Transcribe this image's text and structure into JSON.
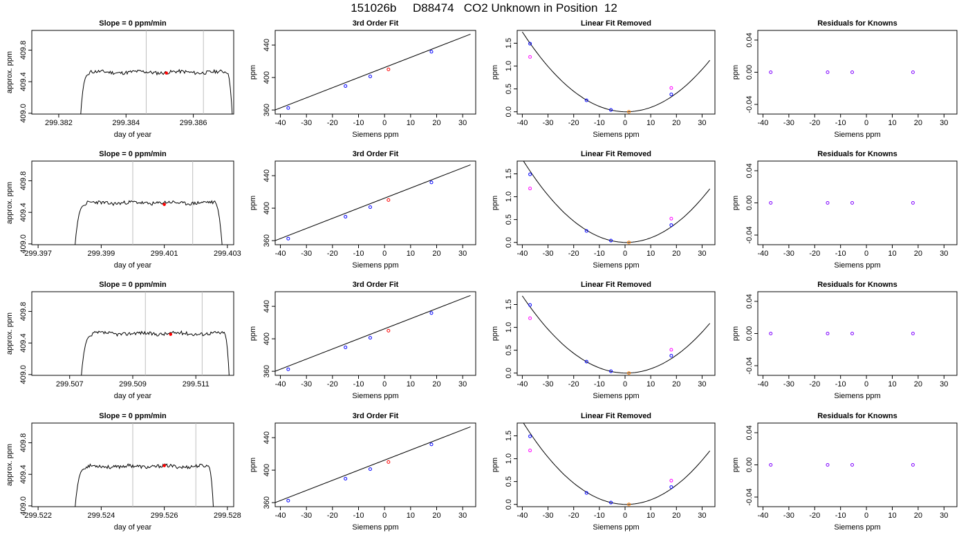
{
  "figure": {
    "title": "151026b     D88474   CO2 Unknown in Position  12"
  },
  "colors": {
    "line": "#000000",
    "gridline": "#bebebe",
    "known_point": "#0000ff",
    "unknown_point": "#ff0000",
    "unknown_point_alt": "#ff7f00",
    "magenta_point": "#ff00ff",
    "residual_point": "#7f00ff"
  },
  "chart_data": [
    {
      "row": 1,
      "col": 1,
      "type": "line",
      "title": "Slope =  0  ppm/min",
      "xlabel": "day of year",
      "ylabel": "approx. ppm",
      "xlim": [
        299.3812,
        299.3872
      ],
      "ylim": [
        408.99,
        410.05
      ],
      "xticks": [
        299.382,
        299.384,
        299.386
      ],
      "xtick_labels": [
        "299.382",
        "299.384",
        "299.386"
      ],
      "yticks": [
        409.0,
        409.4,
        409.8
      ],
      "ytick_labels": [
        "409.0",
        "409.4",
        "409.8"
      ],
      "vlines": [
        299.3846,
        299.3863
      ],
      "trace": {
        "x_start": 299.3826,
        "plateau_start": 299.3829,
        "plateau_end": 299.387,
        "x_end": 299.3872,
        "plateau": 409.52,
        "tail": 408.6,
        "seed": 11
      },
      "point": {
        "x": 299.3852,
        "y": 409.51
      }
    },
    {
      "row": 1,
      "col": 2,
      "type": "line",
      "title": "3rd Order Fit",
      "xlabel": "Siemens ppm",
      "ylabel": "ppm",
      "xlim": [
        -42,
        35
      ],
      "ylim": [
        355,
        458
      ],
      "xticks": [
        -40,
        -30,
        -20,
        -10,
        0,
        10,
        20,
        30
      ],
      "xtick_labels": [
        "-40",
        "-30",
        "-20",
        "-10",
        "0",
        "10",
        "20",
        "30"
      ],
      "yticks": [
        360,
        400,
        440
      ],
      "ytick_labels": [
        "360",
        "400",
        "440"
      ],
      "fit_line": {
        "x": [
          -42,
          33
        ],
        "y": [
          360.1,
          453.4
        ]
      },
      "known_points": {
        "x": [
          -37,
          -15,
          -5.5,
          18
        ],
        "y": [
          362.5,
          389.5,
          401.3,
          431.7
        ]
      },
      "unknown_point": {
        "x": 1.5,
        "y": 410
      }
    },
    {
      "row": 1,
      "col": 3,
      "type": "line",
      "title": "Linear Fit Removed",
      "xlabel": "Siemens ppm",
      "ylabel": "ppm",
      "xlim": [
        -42,
        35
      ],
      "ylim": [
        -0.05,
        1.78
      ],
      "xticks": [
        -40,
        -30,
        -20,
        -10,
        0,
        10,
        20,
        30
      ],
      "xtick_labels": [
        "-40",
        "-30",
        "-20",
        "-10",
        "0",
        "10",
        "20",
        "30"
      ],
      "yticks": [
        0.0,
        0.5,
        1.0,
        1.5
      ],
      "ytick_labels": [
        "0.0",
        "0.5",
        "1.0",
        "1.5"
      ],
      "curve": {
        "vertex_x": 0.5,
        "coef": 0.001066,
        "x_range": [
          -40,
          33
        ]
      },
      "known_points": {
        "x": [
          -37,
          -15,
          -5.5,
          18
        ],
        "y": [
          1.49,
          0.25,
          0.04,
          0.38
        ]
      },
      "magenta_points": {
        "x": [
          -37,
          18
        ],
        "y": [
          1.2,
          0.52
        ]
      },
      "unknown_point": {
        "x": 1.5,
        "y": 0.0
      }
    },
    {
      "row": 1,
      "col": 4,
      "type": "scatter",
      "title": "Residuals for Knowns",
      "xlabel": "Siemens ppm",
      "ylabel": "ppm",
      "xlim": [
        -42,
        35
      ],
      "ylim": [
        -0.052,
        0.052
      ],
      "xticks": [
        -40,
        -30,
        -20,
        -10,
        0,
        10,
        20,
        30
      ],
      "xtick_labels": [
        "-40",
        "-30",
        "-20",
        "-10",
        "0",
        "10",
        "20",
        "30"
      ],
      "yticks": [
        -0.04,
        0.0,
        0.04
      ],
      "ytick_labels": [
        "-0.04",
        "0.00",
        "0.04"
      ],
      "points": {
        "x": [
          -37,
          -15,
          -5.5,
          18
        ],
        "y": [
          0,
          0,
          0,
          0
        ]
      }
    },
    {
      "row": 2,
      "col": 1,
      "type": "line",
      "title": "Slope =  0  ppm/min",
      "xlabel": "day of year",
      "ylabel": "approx. ppm",
      "xlim": [
        299.3968,
        299.4032
      ],
      "ylim": [
        408.99,
        410.05
      ],
      "xticks": [
        299.397,
        299.399,
        299.401,
        299.403
      ],
      "xtick_labels": [
        "299.397",
        "299.399",
        "299.401",
        "299.403"
      ],
      "yticks": [
        409.0,
        409.4,
        409.8
      ],
      "ytick_labels": [
        "409.0",
        "409.4",
        "409.8"
      ],
      "vlines": [
        299.4,
        299.4019
      ],
      "trace": {
        "x_start": 299.3981,
        "plateau_start": 299.3985,
        "plateau_end": 299.4026,
        "x_end": 299.4029,
        "plateau": 409.52,
        "tail": 408.6,
        "seed": 23
      },
      "point": {
        "x": 299.401,
        "y": 409.5
      }
    },
    {
      "row": 2,
      "col": 2,
      "type": "line",
      "title": "3rd Order Fit",
      "xlabel": "Siemens ppm",
      "ylabel": "ppm",
      "xlim": [
        -42,
        35
      ],
      "ylim": [
        355,
        458
      ],
      "xticks": [
        -40,
        -30,
        -20,
        -10,
        0,
        10,
        20,
        30
      ],
      "xtick_labels": [
        "-40",
        "-30",
        "-20",
        "-10",
        "0",
        "10",
        "20",
        "30"
      ],
      "yticks": [
        360,
        400,
        440
      ],
      "ytick_labels": [
        "360",
        "400",
        "440"
      ],
      "fit_line": {
        "x": [
          -42,
          33
        ],
        "y": [
          360.1,
          453.4
        ]
      },
      "known_points": {
        "x": [
          -37,
          -15,
          -5.5,
          18
        ],
        "y": [
          362.5,
          389.5,
          401.3,
          431.7
        ]
      },
      "unknown_point": {
        "x": 1.5,
        "y": 410
      }
    },
    {
      "row": 2,
      "col": 3,
      "type": "line",
      "title": "Linear Fit Removed",
      "xlabel": "Siemens ppm",
      "ylabel": "ppm",
      "xlim": [
        -42,
        35
      ],
      "ylim": [
        -0.05,
        1.78
      ],
      "xticks": [
        -40,
        -30,
        -20,
        -10,
        0,
        10,
        20,
        30
      ],
      "xtick_labels": [
        "-40",
        "-30",
        "-20",
        "-10",
        "0",
        "10",
        "20",
        "30"
      ],
      "yticks": [
        0.0,
        0.5,
        1.0,
        1.5
      ],
      "ytick_labels": [
        "0.0",
        "0.5",
        "1.0",
        "1.5"
      ],
      "curve": {
        "vertex_x": 0.5,
        "coef": 0.00111,
        "x_range": [
          -40,
          33
        ]
      },
      "known_points": {
        "x": [
          -37,
          -15,
          -5.5,
          18
        ],
        "y": [
          1.49,
          0.25,
          0.04,
          0.38
        ]
      },
      "magenta_points": {
        "x": [
          -37,
          18
        ],
        "y": [
          1.18,
          0.52
        ]
      },
      "unknown_point": {
        "x": 1.5,
        "y": 0.0
      }
    },
    {
      "row": 2,
      "col": 4,
      "type": "scatter",
      "title": "Residuals for Knowns",
      "xlabel": "Siemens ppm",
      "ylabel": "ppm",
      "xlim": [
        -42,
        35
      ],
      "ylim": [
        -0.052,
        0.052
      ],
      "xticks": [
        -40,
        -30,
        -20,
        -10,
        0,
        10,
        20,
        30
      ],
      "xtick_labels": [
        "-40",
        "-30",
        "-20",
        "-10",
        "0",
        "10",
        "20",
        "30"
      ],
      "yticks": [
        -0.04,
        0.0,
        0.04
      ],
      "ytick_labels": [
        "-0.04",
        "0.00",
        "0.04"
      ],
      "points": {
        "x": [
          -37,
          -15,
          -5.5,
          18
        ],
        "y": [
          0,
          0,
          0,
          0
        ]
      }
    },
    {
      "row": 3,
      "col": 1,
      "type": "line",
      "title": "Slope =  0  ppm/min",
      "xlabel": "day of year",
      "ylabel": "approx. ppm",
      "xlim": [
        299.5058,
        299.5122
      ],
      "ylim": [
        408.99,
        410.05
      ],
      "xticks": [
        299.507,
        299.509,
        299.511
      ],
      "xtick_labels": [
        "299.507",
        "299.509",
        "299.511"
      ],
      "yticks": [
        409.0,
        409.4,
        409.8
      ],
      "ytick_labels": [
        "409.0",
        "409.4",
        "409.8"
      ],
      "vlines": [
        299.5094,
        299.5112
      ],
      "trace": {
        "x_start": 299.5073,
        "plateau_start": 299.5077,
        "plateau_end": 299.5119,
        "x_end": 299.5121,
        "plateau": 409.52,
        "tail": 408.6,
        "seed": 37
      },
      "point": {
        "x": 299.5102,
        "y": 409.51
      }
    },
    {
      "row": 3,
      "col": 2,
      "type": "line",
      "title": "3rd Order Fit",
      "xlabel": "Siemens ppm",
      "ylabel": "ppm",
      "xlim": [
        -42,
        35
      ],
      "ylim": [
        355,
        458
      ],
      "xticks": [
        -40,
        -30,
        -20,
        -10,
        0,
        10,
        20,
        30
      ],
      "xtick_labels": [
        "-40",
        "-30",
        "-20",
        "-10",
        "0",
        "10",
        "20",
        "30"
      ],
      "yticks": [
        360,
        400,
        440
      ],
      "ytick_labels": [
        "360",
        "400",
        "440"
      ],
      "fit_line": {
        "x": [
          -42,
          33
        ],
        "y": [
          360.1,
          453.4
        ]
      },
      "known_points": {
        "x": [
          -37,
          -15,
          -5.5,
          18
        ],
        "y": [
          362.5,
          389.5,
          401.3,
          431.7
        ]
      },
      "unknown_point": {
        "x": 1.5,
        "y": 410
      }
    },
    {
      "row": 3,
      "col": 3,
      "type": "line",
      "title": "Linear Fit Removed",
      "xlabel": "Siemens ppm",
      "ylabel": "ppm",
      "xlim": [
        -42,
        35
      ],
      "ylim": [
        -0.05,
        1.78
      ],
      "xticks": [
        -40,
        -30,
        -20,
        -10,
        0,
        10,
        20,
        30
      ],
      "xtick_labels": [
        "-40",
        "-30",
        "-20",
        "-10",
        "0",
        "10",
        "20",
        "30"
      ],
      "yticks": [
        0.0,
        0.5,
        1.0,
        1.5
      ],
      "ytick_labels": [
        "0.0",
        "0.5",
        "1.0",
        "1.5"
      ],
      "curve": {
        "vertex_x": 0.5,
        "coef": 0.00103,
        "x_range": [
          -40,
          33
        ]
      },
      "known_points": {
        "x": [
          -37,
          -15,
          -5.5,
          18
        ],
        "y": [
          1.49,
          0.25,
          0.04,
          0.38
        ]
      },
      "magenta_points": {
        "x": [
          -37,
          18
        ],
        "y": [
          1.2,
          0.51
        ]
      },
      "unknown_point": {
        "x": 1.5,
        "y": 0.0
      }
    },
    {
      "row": 3,
      "col": 4,
      "type": "scatter",
      "title": "Residuals for Knowns",
      "xlabel": "Siemens ppm",
      "ylabel": "ppm",
      "xlim": [
        -42,
        35
      ],
      "ylim": [
        -0.052,
        0.052
      ],
      "xticks": [
        -40,
        -30,
        -20,
        -10,
        0,
        10,
        20,
        30
      ],
      "xtick_labels": [
        "-40",
        "-30",
        "-20",
        "-10",
        "0",
        "10",
        "20",
        "30"
      ],
      "yticks": [
        -0.04,
        0.0,
        0.04
      ],
      "ytick_labels": [
        "-0.04",
        "0.00",
        "0.04"
      ],
      "points": {
        "x": [
          -37,
          -15,
          -5.5,
          18
        ],
        "y": [
          0,
          0,
          0,
          0
        ]
      }
    },
    {
      "row": 4,
      "col": 1,
      "type": "line",
      "title": "Slope =  0  ppm/min",
      "xlabel": "day of year",
      "ylabel": "approx. ppm",
      "xlim": [
        299.5218,
        299.5282
      ],
      "ylim": [
        408.99,
        410.05
      ],
      "xticks": [
        299.522,
        299.524,
        299.526,
        299.528
      ],
      "xtick_labels": [
        "299.522",
        "299.524",
        "299.526",
        "299.528"
      ],
      "yticks": [
        409.0,
        409.4,
        409.8
      ],
      "ytick_labels": [
        "409.0",
        "409.4",
        "409.8"
      ],
      "vlines": [
        299.525,
        299.527
      ],
      "trace": {
        "x_start": 299.5231,
        "plateau_start": 299.5235,
        "plateau_end": 299.5274,
        "x_end": 299.5276,
        "plateau": 409.5,
        "tail": 408.6,
        "seed": 53
      },
      "point": {
        "x": 299.526,
        "y": 409.51
      }
    },
    {
      "row": 4,
      "col": 2,
      "type": "line",
      "title": "3rd Order Fit",
      "xlabel": "Siemens ppm",
      "ylabel": "ppm",
      "xlim": [
        -42,
        35
      ],
      "ylim": [
        355,
        458
      ],
      "xticks": [
        -40,
        -30,
        -20,
        -10,
        0,
        10,
        20,
        30
      ],
      "xtick_labels": [
        "-40",
        "-30",
        "-20",
        "-10",
        "0",
        "10",
        "20",
        "30"
      ],
      "yticks": [
        360,
        400,
        440
      ],
      "ytick_labels": [
        "360",
        "400",
        "440"
      ],
      "fit_line": {
        "x": [
          -42,
          33
        ],
        "y": [
          360.1,
          453.4
        ]
      },
      "known_points": {
        "x": [
          -37,
          -15,
          -5.5,
          18
        ],
        "y": [
          362.5,
          389.5,
          401.3,
          431.7
        ]
      },
      "unknown_point": {
        "x": 1.5,
        "y": 410
      }
    },
    {
      "row": 4,
      "col": 3,
      "type": "line",
      "title": "Linear Fit Removed",
      "xlabel": "Siemens ppm",
      "ylabel": "ppm",
      "xlim": [
        -42,
        35
      ],
      "ylim": [
        -0.05,
        1.78
      ],
      "xticks": [
        -40,
        -30,
        -20,
        -10,
        0,
        10,
        20,
        30
      ],
      "xtick_labels": [
        "-40",
        "-30",
        "-20",
        "-10",
        "0",
        "10",
        "20",
        "30"
      ],
      "yticks": [
        0.0,
        0.5,
        1.0,
        1.5
      ],
      "ytick_labels": [
        "0.0",
        "0.5",
        "1.0",
        "1.5"
      ],
      "curve": {
        "vertex_x": 0.5,
        "coef": 0.00111,
        "x_range": [
          -40,
          33
        ]
      },
      "known_points": {
        "x": [
          -37,
          -15,
          -5.5,
          18
        ],
        "y": [
          1.49,
          0.25,
          0.04,
          0.38
        ]
      },
      "magenta_points": {
        "x": [
          -37,
          18
        ],
        "y": [
          1.18,
          0.52
        ]
      },
      "unknown_point": {
        "x": 1.5,
        "y": 0.0
      }
    },
    {
      "row": 4,
      "col": 4,
      "type": "scatter",
      "title": "Residuals for Knowns",
      "xlabel": "Siemens ppm",
      "ylabel": "ppm",
      "xlim": [
        -42,
        35
      ],
      "ylim": [
        -0.052,
        0.052
      ],
      "xticks": [
        -40,
        -30,
        -20,
        -10,
        0,
        10,
        20,
        30
      ],
      "xtick_labels": [
        "-40",
        "-30",
        "-20",
        "-10",
        "0",
        "10",
        "20",
        "30"
      ],
      "yticks": [
        -0.04,
        0.0,
        0.04
      ],
      "ytick_labels": [
        "-0.04",
        "0.00",
        "0.04"
      ],
      "points": {
        "x": [
          -37,
          -15,
          -5.5,
          18
        ],
        "y": [
          0,
          0,
          0,
          0
        ]
      }
    }
  ]
}
